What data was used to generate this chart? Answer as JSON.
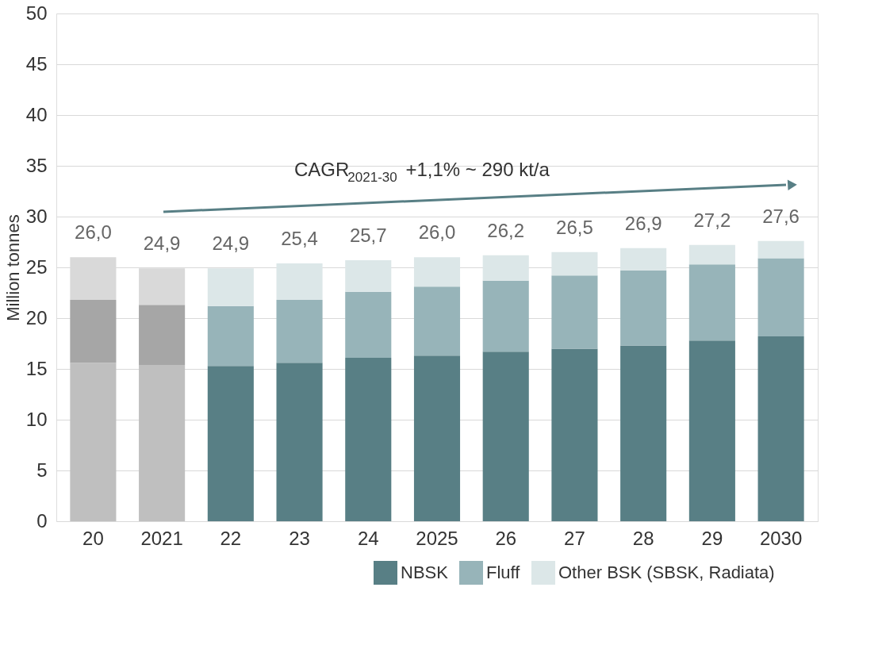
{
  "chart_data": {
    "type": "bar",
    "stacked": true,
    "ylabel": "Million tonnes",
    "categories": [
      "20",
      "2021",
      "22",
      "23",
      "24",
      "2025",
      "26",
      "27",
      "28",
      "29",
      "2030"
    ],
    "series": [
      {
        "name": "NBSK",
        "color": "#587f85",
        "colors": [
          "#bfbfbf",
          "#bfbfbf",
          "#587f85",
          "#587f85",
          "#587f85",
          "#587f85",
          "#587f85",
          "#587f85",
          "#587f85",
          "#587f85",
          "#587f85"
        ],
        "values": [
          15.6,
          15.4,
          15.3,
          15.6,
          16.1,
          16.3,
          16.7,
          17.0,
          17.3,
          17.8,
          18.2
        ]
      },
      {
        "name": "Fluff",
        "color": "#97b4b9",
        "colors": [
          "#a6a6a6",
          "#a6a6a6",
          "#97b4b9",
          "#97b4b9",
          "#97b4b9",
          "#97b4b9",
          "#97b4b9",
          "#97b4b9",
          "#97b4b9",
          "#97b4b9",
          "#97b4b9"
        ],
        "values": [
          6.2,
          5.9,
          5.9,
          6.2,
          6.5,
          6.8,
          7.0,
          7.2,
          7.4,
          7.5,
          7.7
        ]
      },
      {
        "name": "Other BSK (SBSK, Radiata)",
        "color": "#dce7e8",
        "colors": [
          "#d9d9d9",
          "#d9d9d9",
          "#dce7e8",
          "#dce7e8",
          "#dce7e8",
          "#dce7e8",
          "#dce7e8",
          "#dce7e8",
          "#dce7e8",
          "#dce7e8",
          "#dce7e8"
        ],
        "values": [
          4.2,
          3.6,
          3.7,
          3.6,
          3.1,
          2.9,
          2.5,
          2.3,
          2.2,
          1.9,
          1.7
        ]
      }
    ],
    "totals": [
      "26,0",
      "24,9",
      "24,9",
      "25,4",
      "25,7",
      "26,0",
      "26,2",
      "26,5",
      "26,9",
      "27,2",
      "27,6"
    ],
    "annotations": [
      "CAGR$_{2021-30}$ +1,1% ~ 290 kt/a"
    ],
    "ylim": [
      0,
      50
    ],
    "yticks": [
      0,
      5,
      10,
      15,
      20,
      25,
      30,
      35,
      40,
      45,
      50
    ],
    "grid": "y",
    "legend": "bottom right"
  }
}
